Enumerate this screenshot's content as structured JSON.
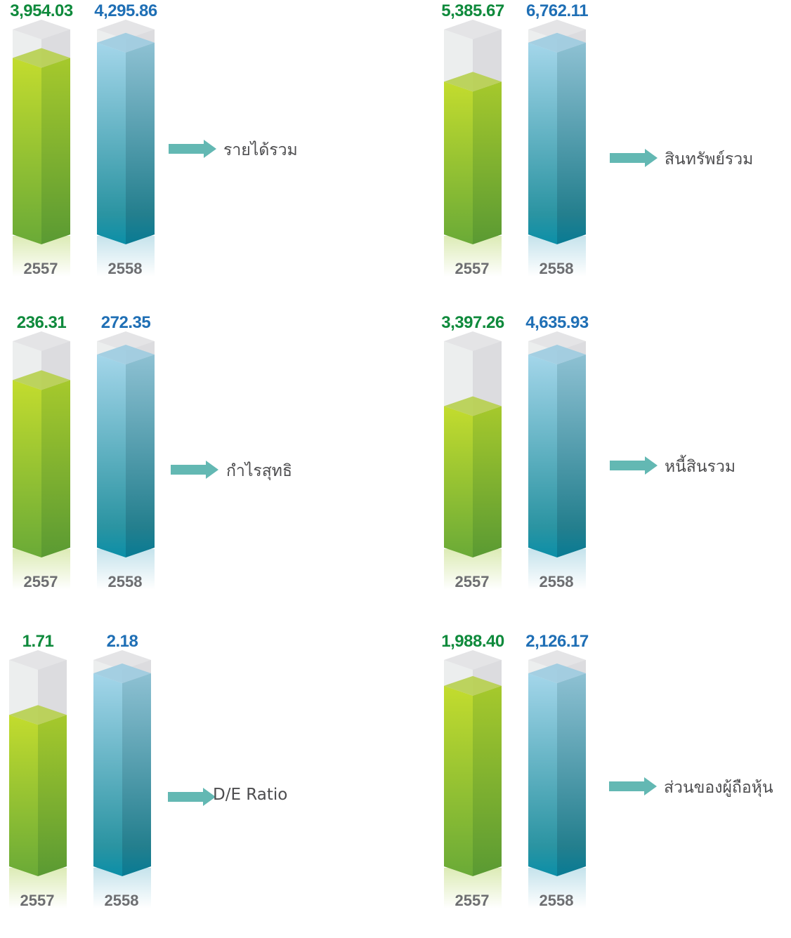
{
  "colors": {
    "y2557": "#0f8a3c",
    "y2558": "#1f6fb5",
    "label": "#4d4d4f",
    "arrow": "#63b8b3"
  },
  "chart_data": [
    {
      "type": "bar",
      "metric": "รายได้รวม",
      "categories": [
        "2557",
        "2558"
      ],
      "values": [
        3954.03,
        4295.86
      ],
      "value_labels": [
        "3,954.03",
        "4,295.86"
      ]
    },
    {
      "type": "bar",
      "metric": "สินทรัพย์รวม",
      "categories": [
        "2557",
        "2558"
      ],
      "values": [
        5385.67,
        6762.11
      ],
      "value_labels": [
        "5,385.67",
        "6,762.11"
      ]
    },
    {
      "type": "bar",
      "metric": "กำไรสุทธิ",
      "categories": [
        "2557",
        "2558"
      ],
      "values": [
        236.31,
        272.35
      ],
      "value_labels": [
        "236.31",
        "272.35"
      ]
    },
    {
      "type": "bar",
      "metric": "หนี้สินรวม",
      "categories": [
        "2557",
        "2558"
      ],
      "values": [
        3397.26,
        4635.93
      ],
      "value_labels": [
        "3,397.26",
        "4,635.93"
      ]
    },
    {
      "type": "bar",
      "metric": "D/E Ratio",
      "categories": [
        "2557",
        "2558"
      ],
      "values": [
        1.71,
        2.18
      ],
      "value_labels": [
        "1.71",
        "2.18"
      ]
    },
    {
      "type": "bar",
      "metric": "ส่วนของผู้ถือหุ้น",
      "categories": [
        "2557",
        "2558"
      ],
      "values": [
        1988.4,
        2126.17
      ],
      "value_labels": [
        "1,988.40",
        "2,126.17"
      ]
    }
  ]
}
